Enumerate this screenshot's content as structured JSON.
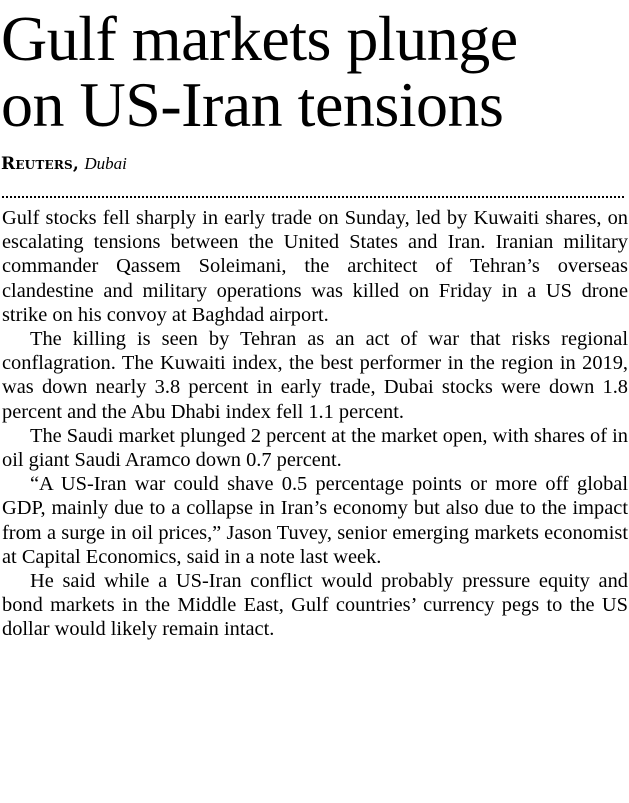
{
  "article": {
    "headline_line1": "Gulf markets plunge",
    "headline_line2": "on US-Iran tensions",
    "byline": {
      "agency": "Reuters,",
      "dateline": "Dubai"
    },
    "paragraphs": [
      "Gulf stocks fell sharply in early trade on Sunday, led by Kuwaiti shares, on escalating tensions between the United States and Iran. Iranian military commander Qassem Soleimani, the architect of Tehran’s overseas clandestine and military operations was killed on Friday in a US drone strike on his convoy at Baghdad airport.",
      "The killing is seen by Tehran as an act of war that risks regional conflagration. The Kuwaiti index, the best performer in the region in 2019, was down nearly 3.8 percent in early trade, Dubai stocks were down 1.8 percent and the Abu Dhabi index fell 1.1 percent.",
      "The Saudi market plunged 2 percent at the market open, with shares of in oil giant Saudi Aramco down 0.7 percent.",
      "“A US-Iran war could shave 0.5 percentage points or more off global GDP, mainly due to a collapse in Iran’s economy but also due to the impact from a surge in oil prices,” Jason Tuvey, senior emerging markets economist at Capital Economics, said in a note last week.",
      "He said while a US-Iran conflict would probably pressure equity and bond markets in the Middle East, Gulf countries’ currency pegs to the US dollar would likely remain intact."
    ]
  }
}
